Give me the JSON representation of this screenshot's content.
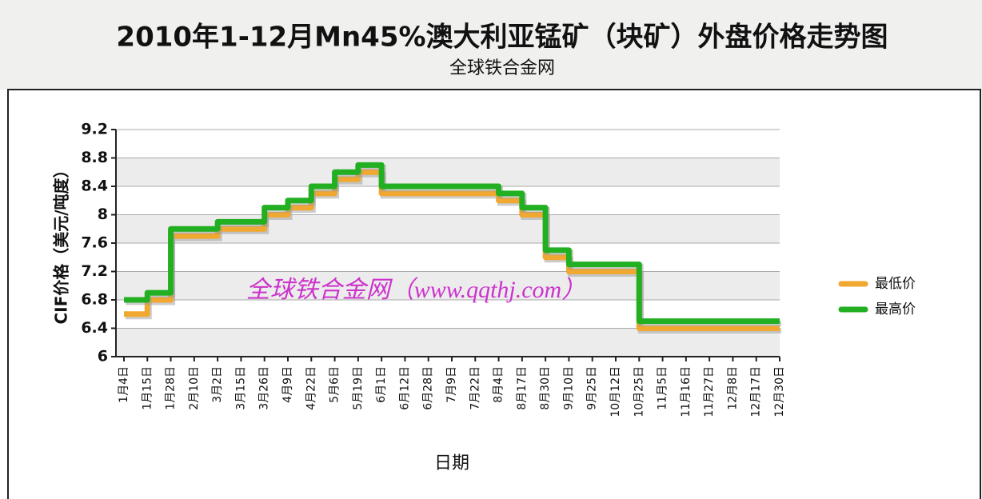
{
  "chart_data": {
    "type": "line",
    "title": "2010年1-12月Mn45%澳大利亚锰矿（块矿）外盘价格走势图",
    "subtitle": "全球铁合金网",
    "y_label": "CIF价格（美元/吨度）",
    "x_label": "日期",
    "annotation": "全球铁合金网（www.qqthj.com）",
    "categories": [
      "1月4日",
      "1月15日",
      "1月28日",
      "2月10日",
      "3月2日",
      "3月15日",
      "3月26日",
      "4月9日",
      "4月22日",
      "5月6日",
      "5月19日",
      "6月1日",
      "6月12日",
      "6月28日",
      "7月9日",
      "7月22日",
      "8月4日",
      "8月17日",
      "8月30日",
      "9月10日",
      "9月25日",
      "10月12日",
      "10月25日",
      "11月5日",
      "11月16日",
      "11月27日",
      "12月8日",
      "12月17日",
      "12月30日"
    ],
    "series": [
      {
        "name": "最低价",
        "color": "#f0a830",
        "values": [
          6.6,
          6.8,
          7.7,
          7.7,
          7.8,
          7.8,
          8.0,
          8.1,
          8.3,
          8.5,
          8.6,
          8.3,
          8.3,
          8.3,
          8.3,
          8.3,
          8.2,
          8.0,
          7.4,
          7.2,
          7.2,
          7.2,
          6.4,
          6.4,
          6.4,
          6.4,
          6.4,
          6.4,
          6.4
        ]
      },
      {
        "name": "最高价",
        "color": "#22b022",
        "values": [
          6.8,
          6.9,
          7.8,
          7.8,
          7.9,
          7.9,
          8.1,
          8.2,
          8.4,
          8.6,
          8.7,
          8.4,
          8.4,
          8.4,
          8.4,
          8.4,
          8.3,
          8.1,
          7.5,
          7.3,
          7.3,
          7.3,
          6.5,
          6.5,
          6.5,
          6.5,
          6.5,
          6.5,
          6.5
        ]
      }
    ],
    "ylim": [
      6,
      9.2
    ],
    "yticks": [
      6,
      6.4,
      6.8,
      7.2,
      7.6,
      8,
      8.4,
      8.8,
      9.2
    ],
    "grid": true,
    "legend": "right"
  }
}
